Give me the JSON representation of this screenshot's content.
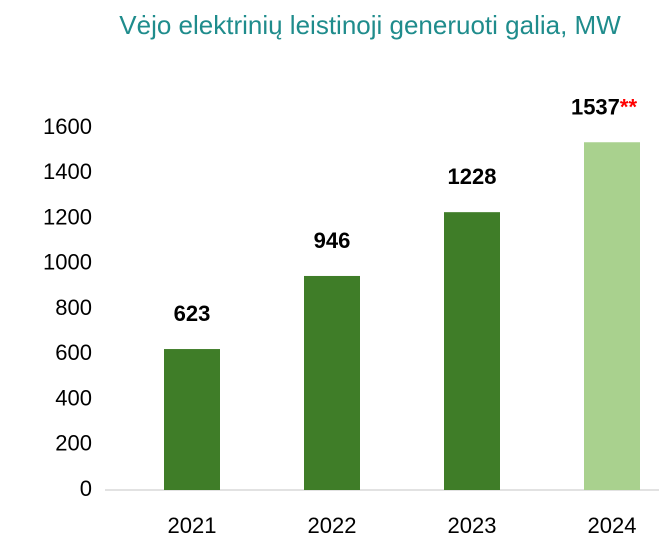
{
  "chart_data": {
    "type": "bar",
    "title": "Vėjo elektrinių leistinoji generuoti galia, MW",
    "categories": [
      "2021",
      "2022",
      "2023",
      "2024"
    ],
    "values": [
      623,
      946,
      1228,
      1537
    ],
    "colors": [
      "#3f7d28",
      "#3f7d28",
      "#3f7d28",
      "#a9d18e"
    ],
    "annotation": {
      "text": "**",
      "color": "#ff0000"
    },
    "ylim": [
      0,
      1600
    ],
    "yticks": [
      0,
      200,
      400,
      600,
      800,
      1000,
      1200,
      1400,
      1600
    ],
    "grid": false
  }
}
